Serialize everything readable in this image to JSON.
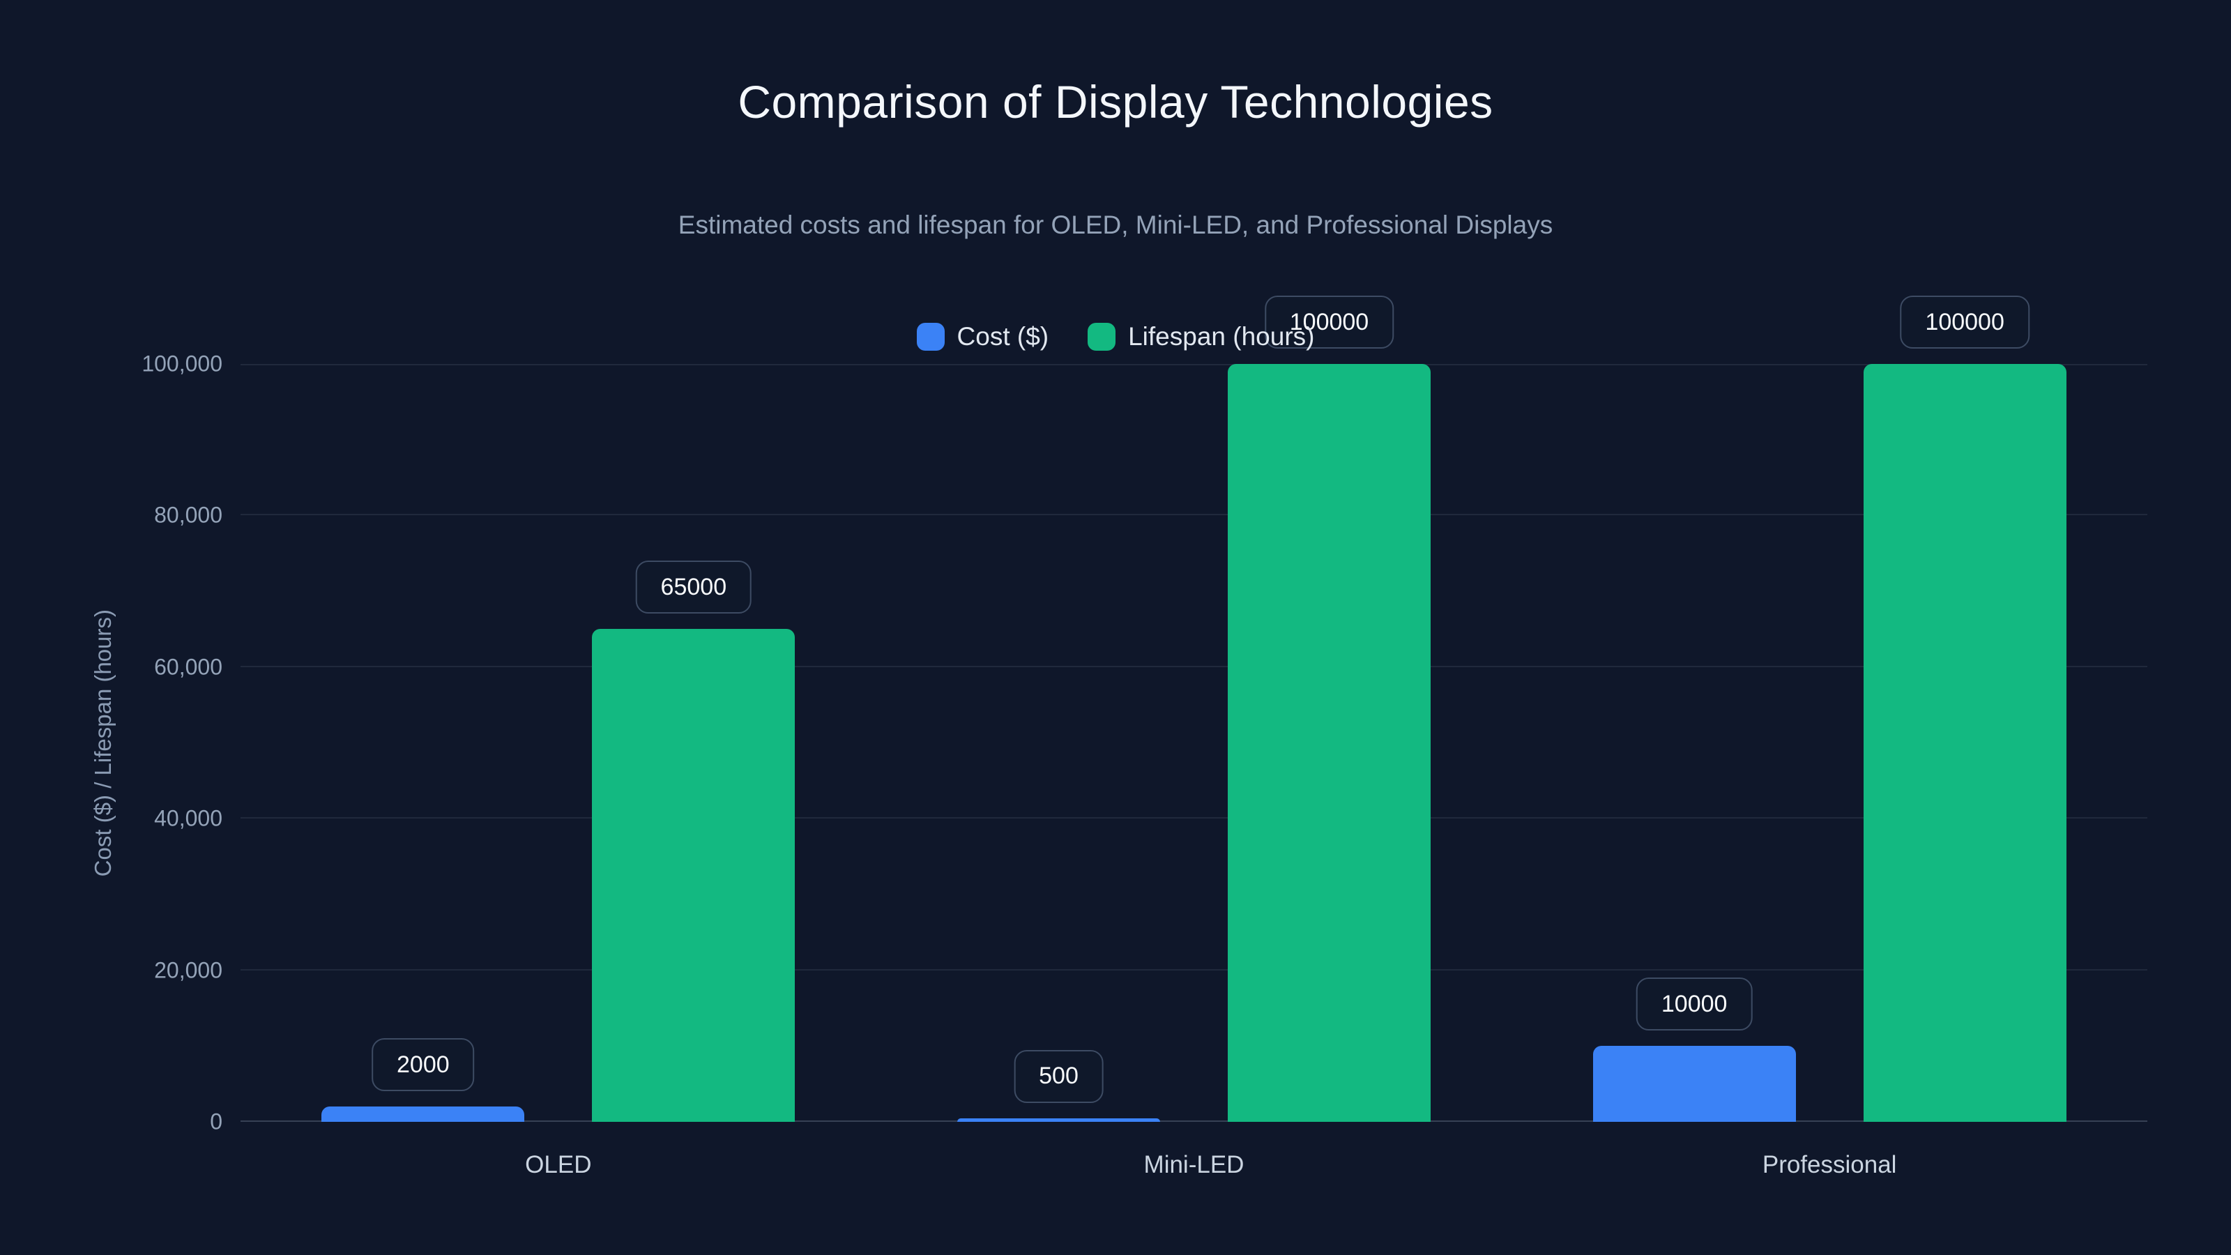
{
  "page": {
    "background_color": "#0f172a"
  },
  "header": {
    "title": "Comparison of Display Technologies",
    "subtitle": "Estimated costs and lifespan for OLED, Mini-LED, and Professional Displays"
  },
  "legend": {
    "items": [
      {
        "label": "Cost ($)",
        "color": "#3b82f6"
      },
      {
        "label": "Lifespan (hours)",
        "color": "#13b981"
      }
    ]
  },
  "chart_data": {
    "type": "bar",
    "title": "Comparison of Display Technologies",
    "subtitle": "Estimated costs and lifespan for OLED, Mini-LED, and Professional Displays",
    "categories": [
      "OLED",
      "Mini-LED",
      "Professional"
    ],
    "series": [
      {
        "name": "Cost ($)",
        "color": "#3b82f6",
        "values": [
          2000,
          500,
          10000
        ],
        "labels": [
          "2000",
          "500",
          "10000"
        ]
      },
      {
        "name": "Lifespan (hours)",
        "color": "#13b981",
        "values": [
          65000,
          100000,
          100000
        ],
        "labels": [
          "65000",
          "100000",
          "100000"
        ]
      }
    ],
    "xlabel": "",
    "ylabel": "Cost ($) / Lifespan (hours)",
    "ylim": [
      0,
      100000
    ],
    "yticks": [
      0,
      20000,
      40000,
      60000,
      80000,
      100000
    ],
    "ytick_labels": [
      "0",
      "20,000",
      "40,000",
      "60,000",
      "80,000",
      "100,000"
    ],
    "grid": true,
    "legend_position": "top-center",
    "colors": {
      "background": "#0f172a",
      "gridline": "rgba(148,163,184,0.13)",
      "tick_text": "#94a3b8",
      "title_text": "#f4f7fb",
      "subtitle_text": "#94a3b8",
      "label_pill_border": "#3d4b63",
      "label_pill_text": "#f8fafc"
    }
  }
}
